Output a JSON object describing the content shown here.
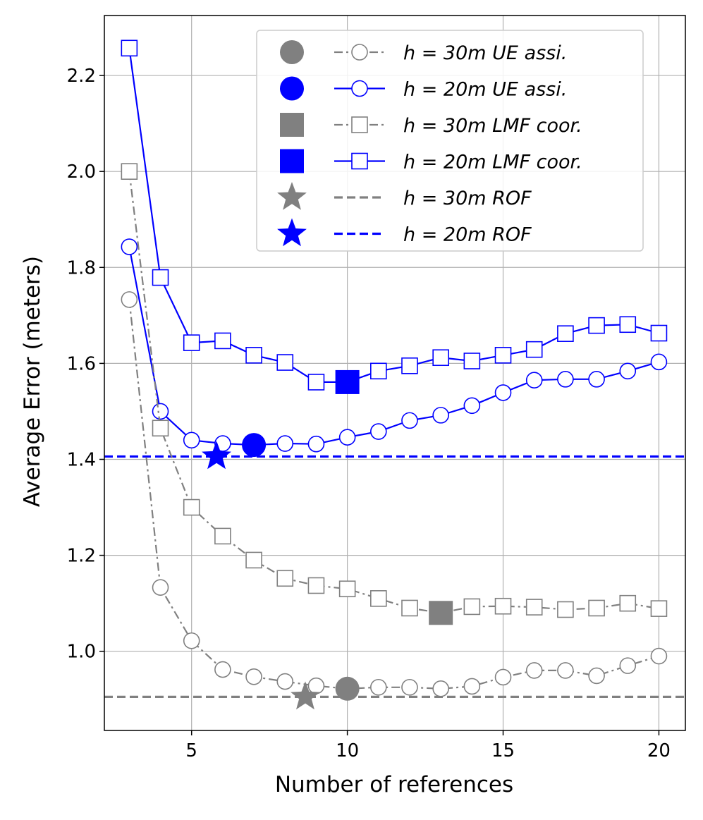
{
  "chart_data": {
    "type": "line",
    "title": "",
    "xlabel": "Number of references",
    "ylabel": "Average Error (meters)",
    "xlim": [
      2.2,
      20.85
    ],
    "ylim": [
      0.835,
      2.325
    ],
    "xticks": [
      5,
      10,
      15,
      20
    ],
    "yticks": [
      1.0,
      1.2,
      1.4,
      1.6,
      1.8,
      2.0,
      2.2
    ],
    "grid": true,
    "legend_position": "top-right",
    "x": [
      3,
      4,
      5,
      6,
      7,
      8,
      9,
      10,
      11,
      12,
      13,
      14,
      15,
      16,
      17,
      18,
      19,
      20
    ],
    "series": [
      {
        "name": "h = 30m UE assi.",
        "label_parts": {
          "lhs": "h",
          "eq": "=",
          "rhs": "30m UE assi."
        },
        "color": "#808080",
        "marker": "circle",
        "linestyle": "dashdot",
        "values": [
          1.733,
          1.133,
          1.022,
          0.962,
          0.947,
          0.937,
          0.928,
          0.922,
          0.925,
          0.925,
          0.922,
          0.927,
          0.946,
          0.96,
          0.96,
          0.949,
          0.97,
          0.99
        ],
        "optimal": {
          "label": "h = 30m UE assi. optimum",
          "x": 10,
          "y": 0.922,
          "marker": "filled-circle"
        }
      },
      {
        "name": "h = 20m UE assi.",
        "label_parts": {
          "lhs": "h",
          "eq": "=",
          "rhs": "20m UE assi."
        },
        "color": "#0000ff",
        "marker": "circle",
        "linestyle": "solid",
        "values": [
          1.843,
          1.5,
          1.44,
          1.433,
          1.43,
          1.433,
          1.432,
          1.446,
          1.458,
          1.481,
          1.492,
          1.512,
          1.539,
          1.565,
          1.567,
          1.567,
          1.584,
          1.603
        ],
        "optimal": {
          "label": "h = 20m UE assi. optimum",
          "x": 7,
          "y": 1.43,
          "marker": "filled-circle"
        }
      },
      {
        "name": "h = 30m LMF coor.",
        "label_parts": {
          "lhs": "h",
          "eq": "=",
          "rhs": "30m LMF coor."
        },
        "color": "#808080",
        "marker": "square",
        "linestyle": "dashdot",
        "values": [
          2.0,
          1.465,
          1.3,
          1.24,
          1.19,
          1.152,
          1.137,
          1.13,
          1.11,
          1.09,
          1.08,
          1.093,
          1.094,
          1.092,
          1.087,
          1.09,
          1.1,
          1.089
        ],
        "optimal": {
          "label": "h = 30m LMF coor. optimum",
          "x": 13,
          "y": 1.08,
          "marker": "filled-square"
        }
      },
      {
        "name": "h = 20m LMF coor.",
        "label_parts": {
          "lhs": "h",
          "eq": "=",
          "rhs": "20m LMF coor."
        },
        "color": "#0000ff",
        "marker": "square",
        "linestyle": "solid",
        "values": [
          2.257,
          1.779,
          1.643,
          1.647,
          1.617,
          1.602,
          1.561,
          1.561,
          1.584,
          1.595,
          1.612,
          1.605,
          1.617,
          1.629,
          1.662,
          1.679,
          1.681,
          1.663
        ],
        "optimal": {
          "label": "h = 20m LMF coor. optimum",
          "x": 10,
          "y": 1.561,
          "marker": "filled-square"
        }
      }
    ],
    "reference_lines": [
      {
        "name": "h = 30m ROF",
        "label_parts": {
          "lhs": "h",
          "eq": "=",
          "rhs": "30m ROF"
        },
        "color": "#808080",
        "linestyle": "dashed",
        "y": 0.905,
        "star": {
          "label": "h = 30m ROF star",
          "x": 8.65,
          "y": 0.905
        }
      },
      {
        "name": "h = 20m ROF",
        "label_parts": {
          "lhs": "h",
          "eq": "=",
          "rhs": "20m ROF"
        },
        "color": "#0000ff",
        "linestyle": "dashed",
        "y": 1.406,
        "star": {
          "label": "h = 20m ROF star",
          "x": 5.8,
          "y": 1.406
        }
      }
    ],
    "legend": [
      {
        "lhs": "h",
        "eq": "=",
        "rhs": "30m UE assi.",
        "color": "#808080",
        "symbol": "filled-circle",
        "line": "dashdot",
        "line_marker": "circle"
      },
      {
        "lhs": "h",
        "eq": "=",
        "rhs": "20m UE assi.",
        "color": "#0000ff",
        "symbol": "filled-circle",
        "line": "solid",
        "line_marker": "circle"
      },
      {
        "lhs": "h",
        "eq": "=",
        "rhs": "30m LMF coor.",
        "color": "#808080",
        "symbol": "filled-square",
        "line": "dashdot",
        "line_marker": "square"
      },
      {
        "lhs": "h",
        "eq": "=",
        "rhs": "20m LMF coor.",
        "color": "#0000ff",
        "symbol": "filled-square",
        "line": "solid",
        "line_marker": "square"
      },
      {
        "lhs": "h",
        "eq": "=",
        "rhs": "30m ROF",
        "color": "#808080",
        "symbol": "star",
        "line": "dashed",
        "line_marker": "none"
      },
      {
        "lhs": "h",
        "eq": "=",
        "rhs": "20m ROF",
        "color": "#0000ff",
        "symbol": "star",
        "line": "dashed",
        "line_marker": "none"
      }
    ]
  }
}
